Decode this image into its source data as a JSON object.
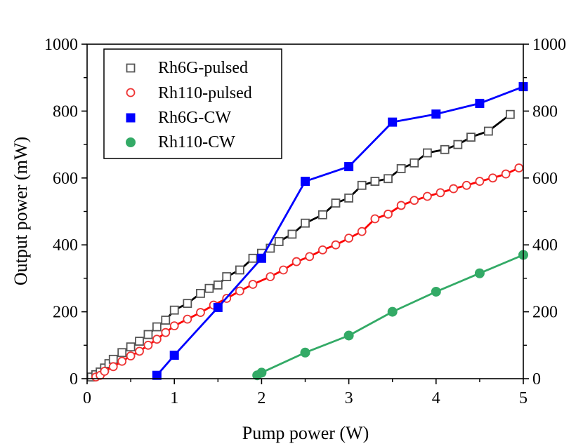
{
  "chart_data": {
    "type": "line",
    "title": "",
    "xlabel": "Pump power (W)",
    "ylabel": "Output power (mW)",
    "xlim": [
      0,
      5
    ],
    "ylim": [
      0,
      1000
    ],
    "y2lim": [
      0,
      1000
    ],
    "x_ticks": [
      "0",
      "1",
      "2",
      "3",
      "4",
      "5"
    ],
    "y_ticks": [
      "0",
      "200",
      "400",
      "600",
      "800",
      "1000"
    ],
    "y2_ticks": [
      "0",
      "200",
      "400",
      "600",
      "800",
      "1000"
    ],
    "grid": false,
    "legend_position": "top-left",
    "series": [
      {
        "name": "Rh6G-pulsed",
        "marker": "open-square",
        "marker_color": "#555555",
        "line_color": "#000000",
        "x": [
          0.05,
          0.1,
          0.15,
          0.2,
          0.25,
          0.3,
          0.4,
          0.5,
          0.6,
          0.7,
          0.8,
          0.9,
          1.0,
          1.15,
          1.3,
          1.4,
          1.5,
          1.6,
          1.75,
          1.9,
          2.0,
          2.1,
          2.2,
          2.35,
          2.5,
          2.7,
          2.85,
          3.0,
          3.15,
          3.3,
          3.45,
          3.6,
          3.75,
          3.9,
          4.1,
          4.25,
          4.4,
          4.6,
          4.85
        ],
        "y": [
          5,
          12,
          20,
          32,
          45,
          58,
          78,
          95,
          112,
          132,
          155,
          175,
          205,
          225,
          255,
          270,
          280,
          305,
          325,
          360,
          375,
          390,
          410,
          432,
          465,
          490,
          525,
          540,
          578,
          590,
          598,
          628,
          645,
          675,
          685,
          700,
          722,
          740,
          790
        ]
      },
      {
        "name": "Rh110-pulsed",
        "marker": "open-circle",
        "marker_color": "#ee3333",
        "line_color": "#ff0000",
        "x": [
          0.1,
          0.15,
          0.2,
          0.3,
          0.4,
          0.5,
          0.6,
          0.7,
          0.8,
          0.9,
          1.0,
          1.15,
          1.3,
          1.45,
          1.6,
          1.75,
          1.9,
          2.1,
          2.25,
          2.4,
          2.55,
          2.7,
          2.85,
          3.0,
          3.15,
          3.3,
          3.45,
          3.6,
          3.75,
          3.9,
          4.05,
          4.2,
          4.35,
          4.5,
          4.65,
          4.8,
          4.95
        ],
        "y": [
          5,
          10,
          22,
          36,
          52,
          68,
          82,
          100,
          118,
          138,
          158,
          178,
          198,
          220,
          240,
          262,
          282,
          305,
          325,
          350,
          365,
          385,
          400,
          420,
          440,
          478,
          492,
          518,
          533,
          545,
          556,
          568,
          578,
          590,
          600,
          612,
          630
        ]
      },
      {
        "name": "Rh6G-CW",
        "marker": "filled-square",
        "marker_color": "#0000ff",
        "line_color": "#0000ff",
        "x": [
          0.8,
          1.0,
          1.5,
          2.0,
          2.5,
          3.0,
          3.5,
          4.0,
          4.5,
          5.0
        ],
        "y": [
          10,
          70,
          213,
          360,
          590,
          634,
          767,
          791,
          823,
          873
        ]
      },
      {
        "name": "Rh110-CW",
        "marker": "filled-circle",
        "marker_color": "#33aa66",
        "line_color": "#33aa66",
        "x": [
          1.95,
          2.0,
          2.5,
          3.0,
          3.5,
          4.0,
          4.5,
          5.0
        ],
        "y": [
          10,
          18,
          78,
          129,
          200,
          260,
          315,
          370
        ]
      }
    ]
  }
}
